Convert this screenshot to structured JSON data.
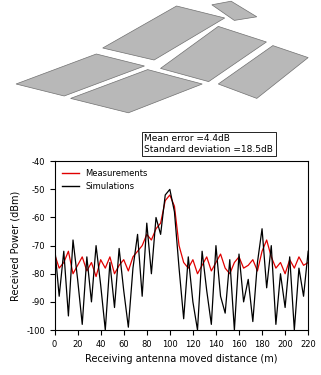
{
  "chart_data": {
    "type": "line",
    "x_label": "Receiving antenna moved distance (m)",
    "y_label": "Received Power (dBm)",
    "annotation": "Mean error =4.4dB\nStandard deviation =18.5dB",
    "x": [
      0,
      4,
      8,
      12,
      16,
      20,
      24,
      28,
      32,
      36,
      40,
      44,
      48,
      52,
      56,
      60,
      64,
      68,
      72,
      76,
      80,
      84,
      88,
      92,
      96,
      100,
      104,
      108,
      112,
      116,
      120,
      124,
      128,
      132,
      136,
      140,
      144,
      148,
      152,
      156,
      160,
      164,
      168,
      172,
      176,
      180,
      184,
      188,
      192,
      196,
      200,
      204,
      208,
      212,
      216,
      220
    ],
    "series": [
      {
        "name": "Measurements",
        "color": "#e00000",
        "values": [
          -73,
          -78,
          -76,
          -72,
          -80,
          -77,
          -74,
          -79,
          -76,
          -81,
          -75,
          -78,
          -74,
          -80,
          -77,
          -75,
          -79,
          -74,
          -72,
          -70,
          -66,
          -68,
          -64,
          -62,
          -54,
          -52,
          -56,
          -70,
          -76,
          -78,
          -75,
          -80,
          -77,
          -74,
          -79,
          -76,
          -73,
          -78,
          -80,
          -76,
          -74,
          -78,
          -77,
          -75,
          -79,
          -72,
          -68,
          -74,
          -78,
          -76,
          -80,
          -75,
          -78,
          -74,
          -77,
          -76
        ]
      },
      {
        "name": "Simulations",
        "color": "#000000",
        "values": [
          -70,
          -88,
          -72,
          -95,
          -68,
          -82,
          -98,
          -74,
          -90,
          -70,
          -84,
          -100,
          -76,
          -92,
          -71,
          -86,
          -99,
          -78,
          -66,
          -88,
          -62,
          -80,
          -60,
          -66,
          -52,
          -50,
          -58,
          -78,
          -96,
          -74,
          -90,
          -100,
          -72,
          -86,
          -98,
          -70,
          -88,
          -94,
          -75,
          -100,
          -73,
          -90,
          -82,
          -97,
          -76,
          -64,
          -85,
          -70,
          -98,
          -80,
          -92,
          -74,
          -100,
          -78,
          -88,
          -72
        ]
      }
    ],
    "xlim": [
      0,
      220
    ],
    "xticks": [
      0,
      20,
      40,
      60,
      80,
      100,
      120,
      140,
      160,
      180,
      200,
      220
    ],
    "ylim": [
      -100,
      -40
    ],
    "yticks": [
      -100,
      -90,
      -80,
      -70,
      -60,
      -50,
      -40
    ],
    "legend": "upper left",
    "grid": false
  }
}
